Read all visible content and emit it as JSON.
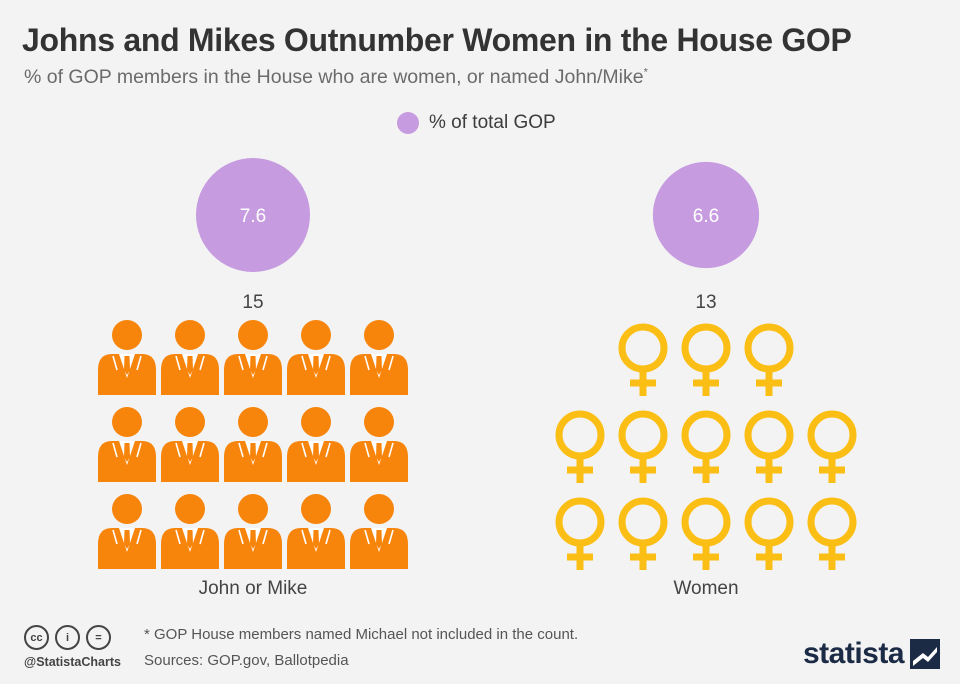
{
  "title": "Johns and Mikes Outnumber Women in the House GOP",
  "subtitle": "% of GOP members in the House who are women, or named John/Mike",
  "subtitle_mark": "*",
  "legend": {
    "label": "% of total GOP",
    "color": "#c69be0"
  },
  "colors": {
    "men": "#f7850c",
    "women": "#fbbe14",
    "bubble": "#c69be0"
  },
  "chart_data": {
    "type": "pictogram",
    "title": "Johns and Mikes Outnumber Women in the House GOP",
    "groups": [
      {
        "name": "John or Mike",
        "pct_of_gop": 7.6,
        "count": 15,
        "icon": "man-icon",
        "rows": [
          5,
          5,
          5
        ]
      },
      {
        "name": "Women",
        "pct_of_gop": 6.6,
        "count": 13,
        "icon": "female-symbol-icon",
        "rows": [
          3,
          5,
          5
        ]
      }
    ]
  },
  "footer": {
    "note": "* GOP House members named Michael not included in the count.",
    "sources": "Sources: GOP.gov, Ballotpedia",
    "handle": "@StatistaCharts",
    "cc_icons": [
      "cc",
      "i",
      "="
    ],
    "brand": "statista"
  }
}
